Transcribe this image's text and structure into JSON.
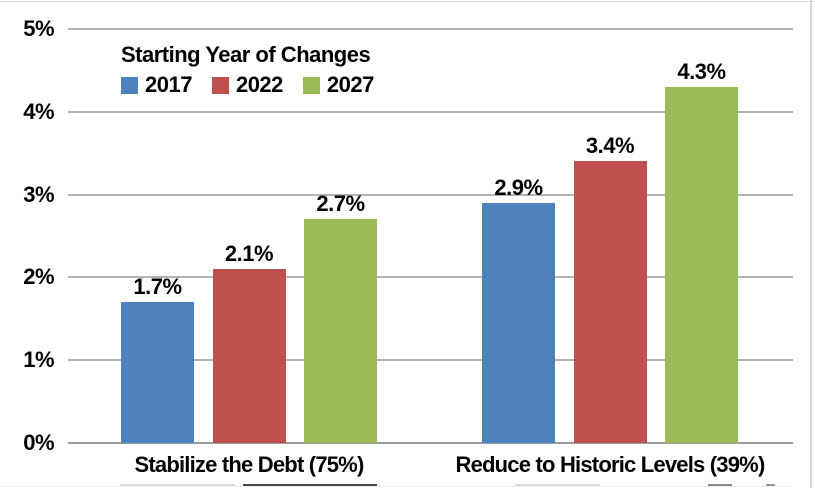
{
  "chart_data": {
    "type": "bar",
    "legend_title": "Starting Year of Changes",
    "legend_position": "top-left-inside",
    "categories": [
      "Stabilize the Debt (75%)",
      "Reduce to Historic Levels (39%)"
    ],
    "series": [
      {
        "name": "2017",
        "color": "#4F81BD",
        "values": [
          1.7,
          2.9
        ],
        "value_labels": [
          "1.7%",
          "2.9%"
        ]
      },
      {
        "name": "2022",
        "color": "#C0504D",
        "values": [
          2.1,
          3.4
        ],
        "value_labels": [
          "2.1%",
          "3.4%"
        ]
      },
      {
        "name": "2027",
        "color": "#9BBB59",
        "values": [
          2.7,
          4.3
        ],
        "value_labels": [
          "2.7%",
          "4.3%"
        ]
      }
    ],
    "ylim": [
      0,
      5
    ],
    "ytick_labels": [
      "0%",
      "1%",
      "2%",
      "3%",
      "4%",
      "5%"
    ],
    "grid": true,
    "xlabel": "",
    "ylabel": "",
    "colors": {
      "gridline": "#B3B3B3",
      "axis": "#9C9C9C",
      "text": "#000000",
      "background": "#FFFFFF"
    }
  }
}
